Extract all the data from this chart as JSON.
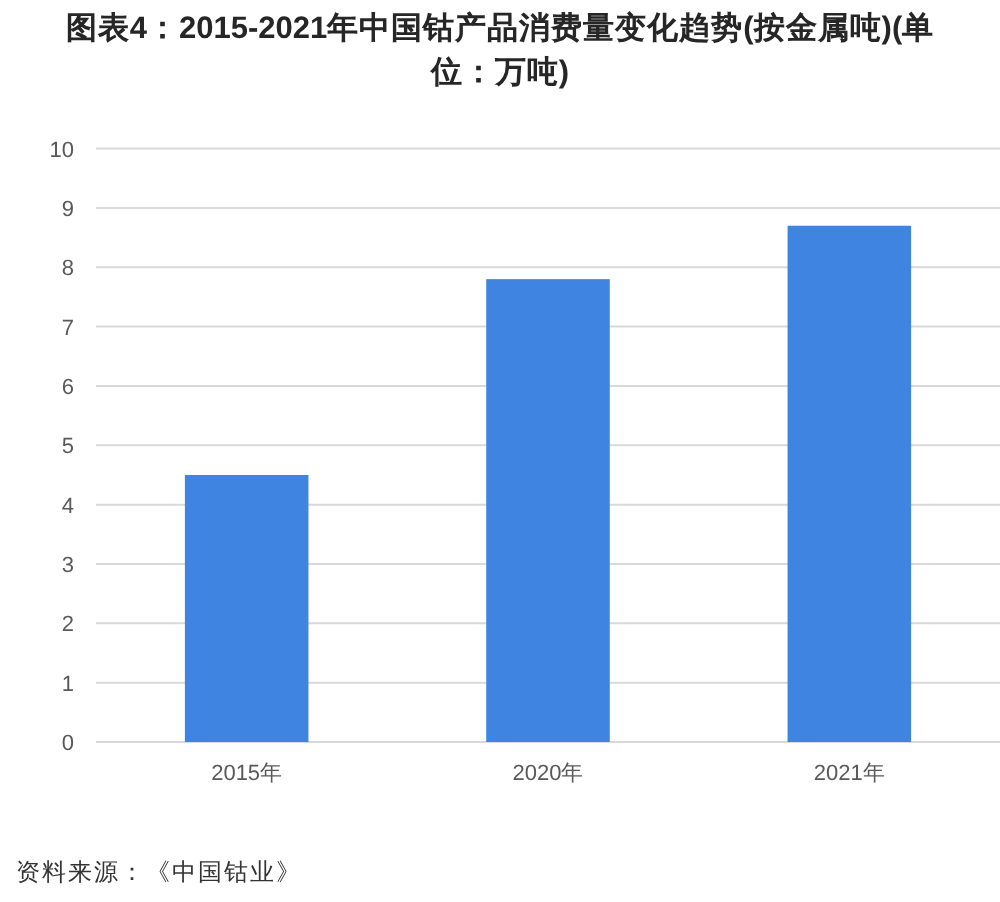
{
  "chart_data": {
    "type": "bar",
    "title": "图表4：2015-2021年中国钴产品消费量变化趋势(按金属吨)(单位：万吨)",
    "categories": [
      "2015年",
      "2020年",
      "2021年"
    ],
    "values": [
      4.5,
      7.8,
      8.7
    ],
    "color": "#3f84e0",
    "ylim": [
      0,
      10
    ],
    "yticks": [
      0,
      1,
      2,
      3,
      4,
      5,
      6,
      7,
      8,
      9,
      10
    ],
    "grid": "y",
    "annotations": [
      "资料来源：《中国钴业》"
    ]
  }
}
